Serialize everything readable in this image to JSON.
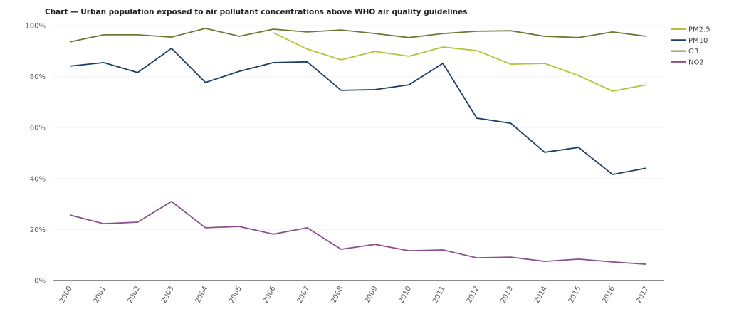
{
  "chart_data": {
    "type": "line",
    "title": "Chart — Urban population exposed to air pollutant concentrations above WHO air quality guidelines",
    "xlabel": "",
    "ylabel": "",
    "x": [
      "2000",
      "2001",
      "2002",
      "2003",
      "2004",
      "2005",
      "2006",
      "2007",
      "2008",
      "2009",
      "2010",
      "2011",
      "2012",
      "2013",
      "2014",
      "2015",
      "2016",
      "2017"
    ],
    "ylim": [
      0,
      100
    ],
    "yticks": [
      0,
      20,
      40,
      60,
      80,
      100
    ],
    "ytick_labels": [
      "0%",
      "20%",
      "40%",
      "60%",
      "80%",
      "100%"
    ],
    "grid": true,
    "legend_position": "top-right",
    "series": [
      {
        "name": "PM2.5",
        "color": "#b5c334",
        "values": [
          null,
          null,
          null,
          null,
          null,
          null,
          97.2,
          90.8,
          86.6,
          89.9,
          88.0,
          91.6,
          90.2,
          84.9,
          85.2,
          80.4,
          74.3,
          76.8
        ]
      },
      {
        "name": "PM10",
        "color": "#1b3f66",
        "values": [
          84.1,
          85.5,
          81.6,
          91.1,
          77.7,
          82.1,
          85.5,
          85.8,
          74.6,
          74.9,
          76.8,
          85.2,
          63.7,
          61.7,
          50.3,
          52.2,
          41.6,
          44.1
        ]
      },
      {
        "name": "O3",
        "color": "#6b7a31",
        "values": [
          93.6,
          96.4,
          96.4,
          95.5,
          98.9,
          95.8,
          98.6,
          97.5,
          98.3,
          96.9,
          95.3,
          96.9,
          97.8,
          98.0,
          95.8,
          95.3,
          97.5,
          95.8
        ]
      },
      {
        "name": "NO2",
        "color": "#8b4f8c",
        "values": [
          25.7,
          22.3,
          22.9,
          31.0,
          20.7,
          21.2,
          18.2,
          20.7,
          12.3,
          14.2,
          11.7,
          12.0,
          8.9,
          9.2,
          7.5,
          8.4,
          7.3,
          6.4
        ]
      }
    ]
  }
}
